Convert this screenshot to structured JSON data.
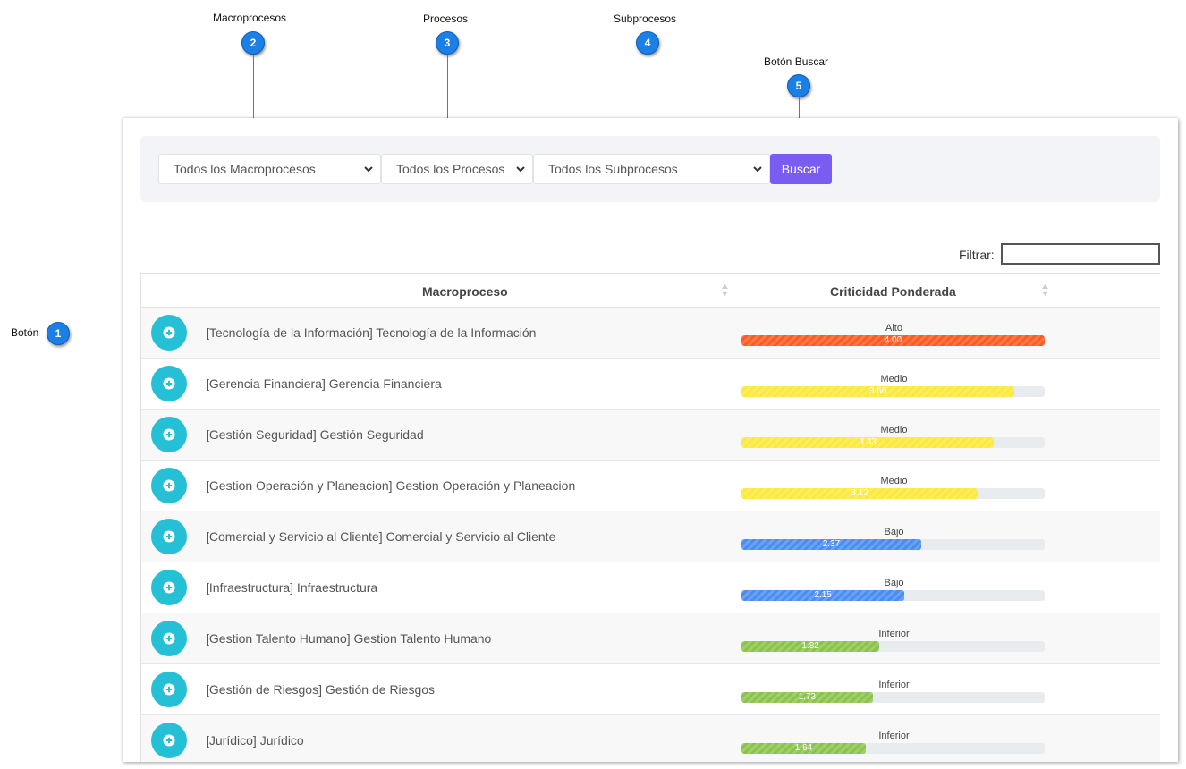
{
  "callouts": {
    "c1": {
      "num": "1",
      "label": "Botón"
    },
    "c2": {
      "num": "2",
      "label": "Macroprocesos"
    },
    "c3": {
      "num": "3",
      "label": "Procesos"
    },
    "c4": {
      "num": "4",
      "label": "Subprocesos"
    },
    "c5": {
      "num": "5",
      "label": "Botón Buscar"
    }
  },
  "filters": {
    "macroprocesos": "Todos los Macroprocesos",
    "procesos": "Todos los Procesos",
    "subprocesos": "Todos los Subprocesos",
    "buscar_label": "Buscar"
  },
  "search": {
    "label": "Filtrar:",
    "value": ""
  },
  "table": {
    "headers": {
      "macroproceso": "Macroproceso",
      "criticidad": "Criticidad Ponderada"
    },
    "max_value": 4.0,
    "rows": [
      {
        "name": "[Tecnología de la Información] Tecnología de la Información",
        "level": "Alto",
        "value": "4.00",
        "color": "#ff5a1f"
      },
      {
        "name": "[Gerencia Financiera] Gerencia Financiera",
        "level": "Medio",
        "value": "3.60",
        "color": "#fce93c"
      },
      {
        "name": "[Gestión Seguridad] Gestión Seguridad",
        "level": "Medio",
        "value": "3.33",
        "color": "#fce93c"
      },
      {
        "name": "[Gestion Operación y Planeacion] Gestion Operación y Planeacion",
        "level": "Medio",
        "value": "3.12",
        "color": "#fce93c"
      },
      {
        "name": "[Comercial y Servicio al Cliente] Comercial y Servicio al Cliente",
        "level": "Bajo",
        "value": "2.37",
        "color": "#4a8cf0"
      },
      {
        "name": "[Infraestructura] Infraestructura",
        "level": "Bajo",
        "value": "2.15",
        "color": "#4a8cf0"
      },
      {
        "name": "[Gestion Talento Humano] Gestion Talento Humano",
        "level": "Inferior",
        "value": "1.82",
        "color": "#8bc34a"
      },
      {
        "name": "[Gestión de Riesgos] Gestión de Riesgos",
        "level": "Inferior",
        "value": "1.73",
        "color": "#8bc34a"
      },
      {
        "name": "[Jurídico] Jurídico",
        "level": "Inferior",
        "value": "1.64",
        "color": "#8bc34a"
      }
    ]
  },
  "icons": {
    "expand": "plus-circle-icon",
    "select": "chevron-down-icon",
    "sort": "sort-icon"
  }
}
